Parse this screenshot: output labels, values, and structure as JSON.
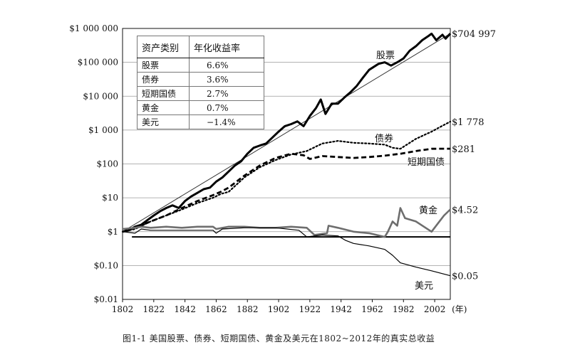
{
  "chart_data": {
    "type": "line",
    "x_range": [
      1802,
      2012
    ],
    "y_scale": "log",
    "y_range": [
      0.01,
      1000000
    ],
    "y_ticks": [
      {
        "value": 1000000,
        "label": "$1 000 000"
      },
      {
        "value": 100000,
        "label": "$100 000"
      },
      {
        "value": 10000,
        "label": "$10 000"
      },
      {
        "value": 1000,
        "label": "$1 000"
      },
      {
        "value": 100,
        "label": "$100"
      },
      {
        "value": 10,
        "label": "$10"
      },
      {
        "value": 1,
        "label": "$1"
      },
      {
        "value": 0.1,
        "label": "$0.10"
      },
      {
        "value": 0.01,
        "label": "$0.01"
      }
    ],
    "x_ticks": [
      "1802",
      "1822",
      "1842",
      "1862",
      "1882",
      "1902",
      "1922",
      "1942",
      "1962",
      "1982",
      "2002"
    ],
    "x_unit": "(年)",
    "grid": "horizontal",
    "reference_line": {
      "value": 0.7,
      "x": [
        1808,
        2012
      ]
    },
    "series": [
      {
        "name": "股票",
        "end_label": "$704 997",
        "style": "solid-thick",
        "x": [
          1802,
          1806,
          1810,
          1814,
          1818,
          1822,
          1826,
          1830,
          1834,
          1838,
          1842,
          1846,
          1850,
          1854,
          1858,
          1862,
          1866,
          1870,
          1874,
          1878,
          1882,
          1886,
          1890,
          1894,
          1898,
          1902,
          1906,
          1910,
          1914,
          1918,
          1922,
          1926,
          1929,
          1932,
          1936,
          1940,
          1944,
          1948,
          1952,
          1956,
          1960,
          1966,
          1970,
          1974,
          1978,
          1982,
          1986,
          1990,
          1994,
          1998,
          2000,
          2003,
          2007,
          2009,
          2012
        ],
        "y": [
          1,
          1.1,
          1.4,
          1.6,
          2.2,
          3,
          4,
          5,
          6,
          5,
          8,
          11,
          14,
          18,
          20,
          30,
          40,
          60,
          90,
          120,
          200,
          300,
          350,
          400,
          600,
          900,
          1300,
          1500,
          1800,
          1300,
          2600,
          4500,
          8000,
          3000,
          6000,
          6000,
          9000,
          13000,
          20000,
          35000,
          60000,
          90000,
          100000,
          80000,
          100000,
          130000,
          220000,
          300000,
          450000,
          600000,
          700000,
          450000,
          650000,
          500000,
          704997
        ]
      },
      {
        "name": "债券",
        "end_label": "$1 778",
        "style": "dotted",
        "x": [
          1802,
          1810,
          1820,
          1830,
          1840,
          1850,
          1860,
          1865,
          1870,
          1880,
          1890,
          1900,
          1910,
          1920,
          1930,
          1940,
          1950,
          1960,
          1970,
          1975,
          1980,
          1990,
          2000,
          2005,
          2012
        ],
        "y": [
          1,
          1.2,
          2,
          3,
          4.5,
          7,
          10,
          13,
          15,
          40,
          80,
          130,
          190,
          240,
          400,
          480,
          420,
          400,
          370,
          300,
          280,
          550,
          900,
          1200,
          1778
        ]
      },
      {
        "name": "短期国债",
        "end_label": "$281",
        "style": "dashed",
        "x": [
          1802,
          1810,
          1820,
          1830,
          1840,
          1850,
          1860,
          1865,
          1870,
          1880,
          1890,
          1900,
          1910,
          1918,
          1922,
          1930,
          1940,
          1950,
          1960,
          1970,
          1980,
          1990,
          2000,
          2012
        ],
        "y": [
          1,
          1.3,
          2,
          3,
          5,
          8,
          12,
          15,
          20,
          45,
          90,
          150,
          200,
          180,
          140,
          170,
          160,
          150,
          160,
          175,
          200,
          240,
          280,
          281
        ]
      },
      {
        "name": "黄金",
        "end_label": "$4.52",
        "style": "gray-thick",
        "x": [
          1802,
          1810,
          1814,
          1820,
          1830,
          1840,
          1850,
          1860,
          1862,
          1870,
          1880,
          1890,
          1900,
          1910,
          1920,
          1925,
          1933,
          1934,
          1940,
          1950,
          1960,
          1970,
          1972,
          1975,
          1978,
          1980,
          1983,
          1990,
          2000,
          2005,
          2008,
          2012
        ],
        "y": [
          1.2,
          1.3,
          1.4,
          1.3,
          1.4,
          1.3,
          1.4,
          1.4,
          1.2,
          1.4,
          1.4,
          1.3,
          1.3,
          1.4,
          1.3,
          0.8,
          0.9,
          1.5,
          1.3,
          1.0,
          0.9,
          0.7,
          1.0,
          2.0,
          1.5,
          5.0,
          2.5,
          2.0,
          1.0,
          2.0,
          3.0,
          4.52
        ]
      },
      {
        "name": "美元",
        "end_label": "$0.05",
        "style": "solid-thin",
        "x": [
          1802,
          1810,
          1814,
          1820,
          1830,
          1840,
          1850,
          1860,
          1862,
          1866,
          1880,
          1900,
          1915,
          1920,
          1930,
          1940,
          1945,
          1950,
          1960,
          1970,
          1975,
          1980,
          1990,
          2000,
          2012
        ],
        "y": [
          1,
          0.9,
          1.2,
          1.1,
          1.1,
          1.1,
          1.1,
          1.1,
          0.9,
          1.2,
          1.3,
          1.3,
          1.1,
          0.7,
          0.8,
          0.75,
          0.55,
          0.45,
          0.38,
          0.3,
          0.2,
          0.12,
          0.09,
          0.07,
          0.05
        ]
      }
    ],
    "table": {
      "headers": [
        "资产类别",
        "年化收益率"
      ],
      "rows": [
        [
          "股票",
          "6.6%"
        ],
        [
          "债券",
          "3.6%"
        ],
        [
          "短期国债",
          "2.7%"
        ],
        [
          "黄金",
          "0.7%"
        ],
        [
          "美元",
          "−1.4%"
        ]
      ]
    },
    "caption": "图1-1   美国股票、债券、短期国债、黄金及美元在1802~2012年的真实总收益"
  }
}
